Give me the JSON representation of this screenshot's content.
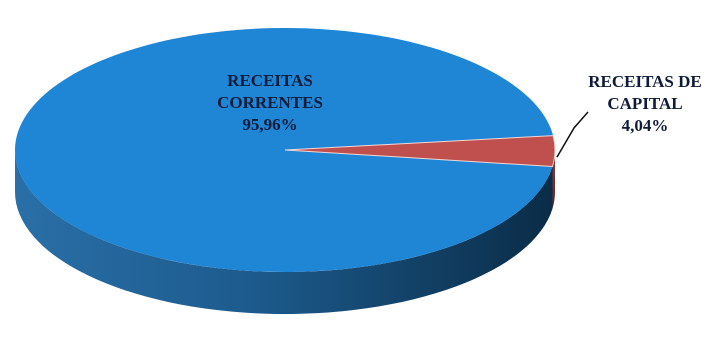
{
  "chart_data": {
    "type": "pie",
    "style": "3d",
    "title": "",
    "slices": [
      {
        "label_lines": [
          "RECEITAS",
          "CORRENTES"
        ],
        "value": 95.96,
        "value_label": "95,96%",
        "color": "#1f86d6"
      },
      {
        "label_lines": [
          "RECEITAS DE",
          "CAPITAL"
        ],
        "value": 4.04,
        "value_label": "4,04%",
        "color": "#c0504d"
      }
    ]
  }
}
